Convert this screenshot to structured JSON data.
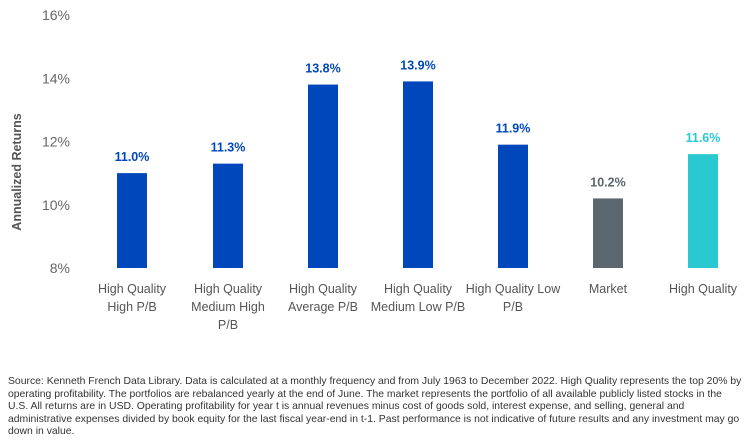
{
  "chart_data": {
    "type": "bar",
    "title": "",
    "xlabel": "",
    "ylabel": "Annualized Returns",
    "ylim": [
      8,
      16
    ],
    "yticks": [
      8,
      10,
      12,
      14,
      16
    ],
    "ytick_labels": [
      "8%",
      "10%",
      "12%",
      "14%",
      "16%"
    ],
    "grid": false,
    "categories": [
      [
        "High Quality",
        "High P/B"
      ],
      [
        "High Quality",
        "Medium High",
        "P/B"
      ],
      [
        "High Quality",
        "Average P/B"
      ],
      [
        "High Quality",
        "Medium Low P/B"
      ],
      [
        "High Quality Low",
        "P/B"
      ],
      [
        "Market"
      ],
      [
        "High Quality"
      ]
    ],
    "values": [
      11.0,
      11.3,
      13.8,
      13.9,
      11.9,
      10.2,
      11.6
    ],
    "value_labels": [
      "11.0%",
      "11.3%",
      "13.8%",
      "13.9%",
      "11.9%",
      "10.2%",
      "11.6%"
    ],
    "bar_colors": [
      "#0047bb",
      "#0047bb",
      "#0047bb",
      "#0047bb",
      "#0047bb",
      "#5b666f",
      "#2ac9d2"
    ],
    "label_colors": [
      "#0047bb",
      "#0047bb",
      "#0047bb",
      "#0047bb",
      "#0047bb",
      "#5b666f",
      "#2ac9d2"
    ]
  },
  "source_note": "Source: Kenneth French Data Library. Data is calculated at a monthly frequency and from July 1963 to December 2022. High Quality represents the top 20% by operating profitability. The portfolios are rebalanced yearly at the end of June. The market represents the portfolio of all available publicly listed stocks in the U.S. All returns are in USD. Operating profitability for year t is annual revenues minus cost of goods sold, interest expense, and selling, general and administrative expenses divided by book equity for the last fiscal year-end in t-1. Past performance is not indicative of future results and any investment may go down in value."
}
